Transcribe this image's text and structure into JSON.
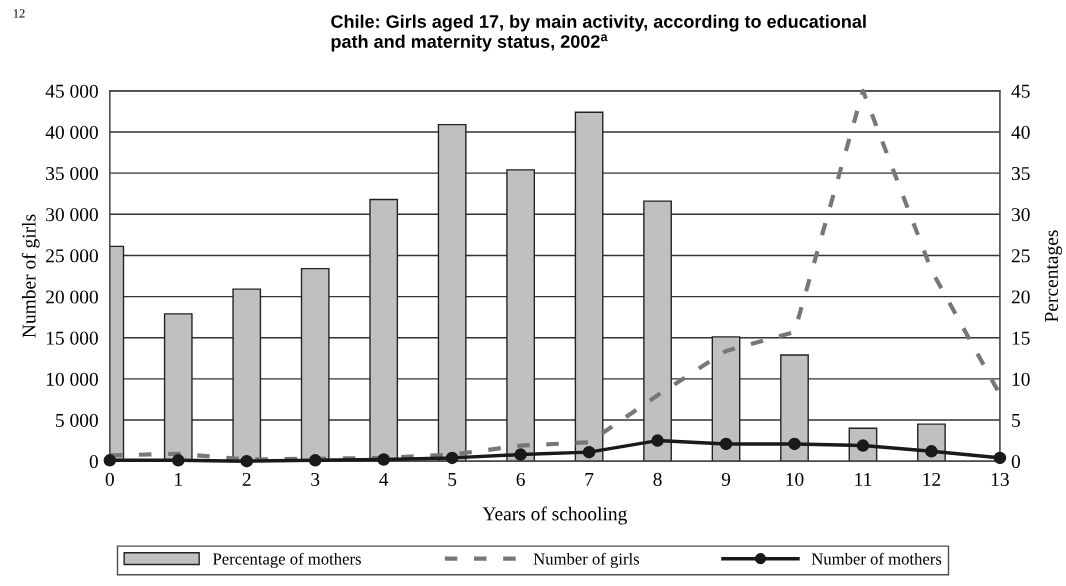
{
  "chart_data": {
    "type": "bar",
    "title": "Chile: Girls aged 17, by main activity, according to educational path and maternity status, 2002$^{a}$",
    "xlabel": "Years of schooling",
    "ylabel": "Number of girls",
    "y2label": "Percentages",
    "annotations": [
      "12"
    ],
    "x": [
      0,
      1,
      2,
      3,
      4,
      5,
      6,
      7,
      8,
      9,
      10,
      11,
      12,
      13
    ],
    "series": [
      {
        "name": "Percentage of mothers",
        "axis": "y2",
        "color": "#bfc0c2",
        "x": [
          0,
          1,
          2,
          3,
          4,
          5,
          6,
          7,
          8,
          9,
          10,
          11,
          12
        ],
        "values": [
          26.1,
          17.9,
          20.9,
          23.4,
          31.8,
          40.9,
          35.4,
          42.4,
          31.6,
          15.1,
          12.9,
          4.0,
          4.5
        ]
      },
      {
        "name": "Number of girls",
        "type": "line",
        "color": "#777777",
        "line_style": "dashed",
        "marker": "none",
        "values": [
          700,
          900,
          200,
          300,
          400,
          800,
          1900,
          2300,
          8000,
          13400,
          15700,
          45000,
          23200,
          8100
        ]
      },
      {
        "name": "Number of mothers",
        "type": "line",
        "color": "#1a1a1a",
        "line_style": "solid",
        "marker": "circle",
        "values": [
          100,
          100,
          0,
          100,
          200,
          400,
          800,
          1100,
          2500,
          2100,
          2100,
          1900,
          1200,
          400
        ]
      }
    ],
    "xlim": [
      0,
      13
    ],
    "xticks": [
      0,
      1,
      2,
      3,
      4,
      5,
      6,
      7,
      8,
      9,
      10,
      11,
      12,
      13
    ],
    "ylim": [
      0,
      45000
    ],
    "yticks": [
      0,
      {
        "value": 5000,
        "label": "5 000"
      },
      {
        "value": 10000,
        "label": "10 000"
      },
      {
        "value": 15000,
        "label": "15 000"
      },
      {
        "value": 20000,
        "label": "20 000"
      },
      {
        "value": 25000,
        "label": "25 000"
      },
      {
        "value": 30000,
        "label": "30 000"
      },
      {
        "value": 35000,
        "label": "35 000"
      },
      {
        "value": 40000,
        "label": "40 000"
      },
      {
        "value": 45000,
        "label": "45 000"
      }
    ],
    "y2lim": [
      0,
      45
    ],
    "y2ticks": [
      0,
      5,
      10,
      15,
      20,
      25,
      30,
      35,
      40,
      45
    ],
    "grid": "y",
    "legend": "bottom"
  }
}
